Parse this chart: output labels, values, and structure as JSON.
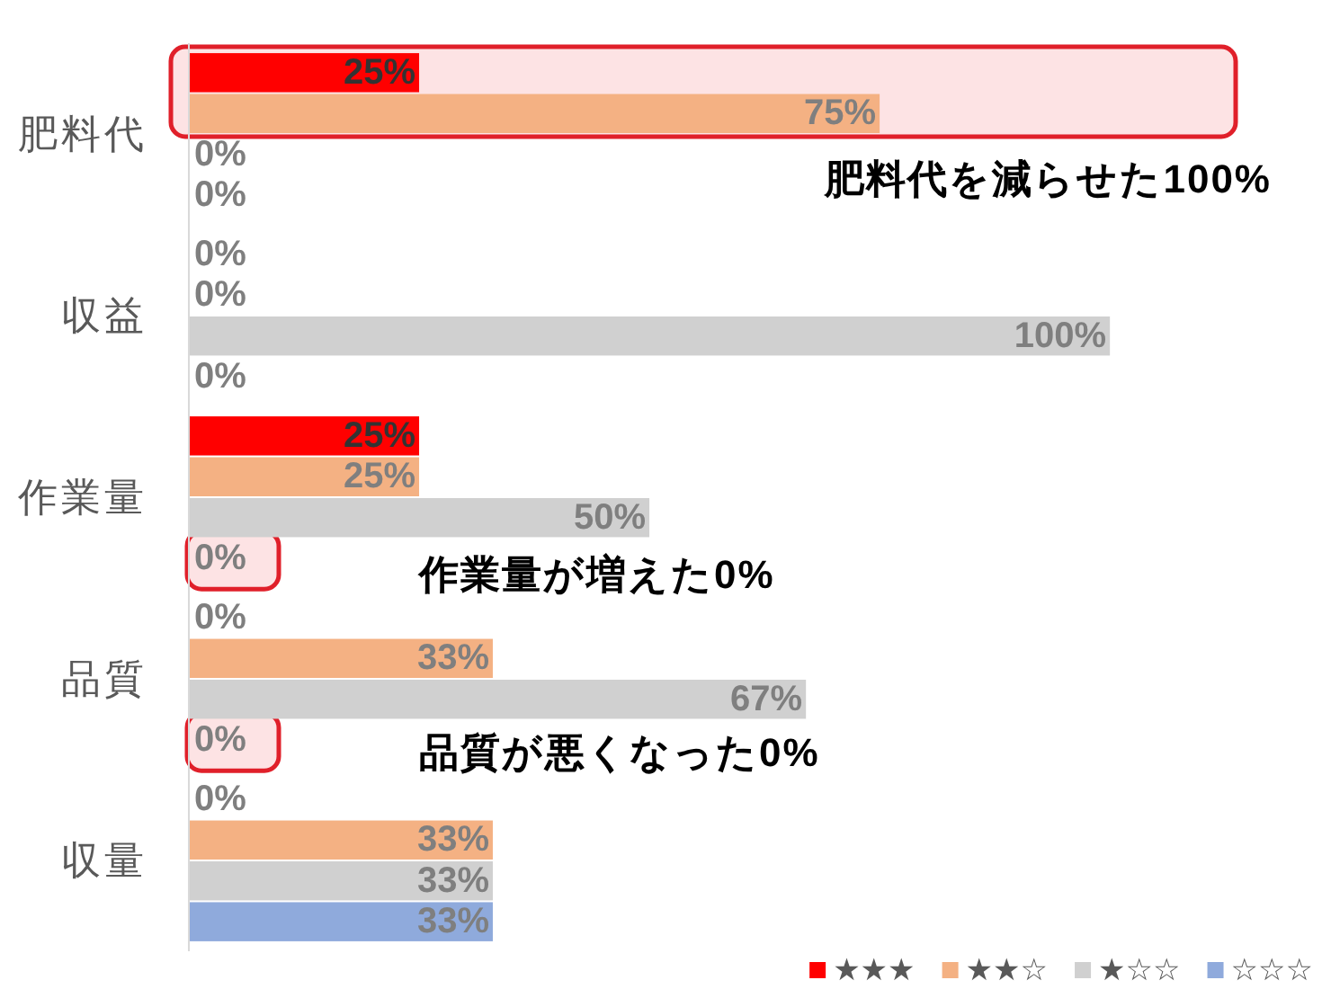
{
  "chart_data": {
    "type": "bar",
    "orientation": "horizontal",
    "categories": [
      "肥料代",
      "収益",
      "作業量",
      "品質",
      "収量"
    ],
    "series": [
      {
        "name": "★★★",
        "color": "#ff0000",
        "values": [
          25,
          0,
          25,
          0,
          0
        ],
        "value_labels": [
          "25%",
          "0%",
          "25%",
          "0%",
          "0%"
        ]
      },
      {
        "name": "★★☆",
        "color": "#f4b183",
        "values": [
          75,
          0,
          25,
          33,
          33
        ],
        "value_labels": [
          "75%",
          "0%",
          "25%",
          "33%",
          "33%"
        ]
      },
      {
        "name": "★☆☆",
        "color": "#d0d0d0",
        "values": [
          0,
          100,
          50,
          67,
          33
        ],
        "value_labels": [
          "0%",
          "100%",
          "50%",
          "67%",
          "33%"
        ]
      },
      {
        "name": "☆☆☆",
        "color": "#8faadc",
        "values": [
          0,
          0,
          0,
          0,
          33
        ],
        "value_labels": [
          "0%",
          "0%",
          "0%",
          "0%",
          "33%"
        ]
      }
    ],
    "bands": [
      {
        "axis": "y",
        "from": "肥料代",
        "to": "肥料代",
        "label": "肥料代を減らせた100%",
        "color": "#fde3e4"
      }
    ],
    "annotations": [
      {
        "text": "作業量が増えた0%",
        "y": "作業量"
      },
      {
        "text": "品質が悪くなった0%",
        "y": "品質"
      }
    ],
    "legend": "bottom right",
    "tick_labels": "y"
  }
}
